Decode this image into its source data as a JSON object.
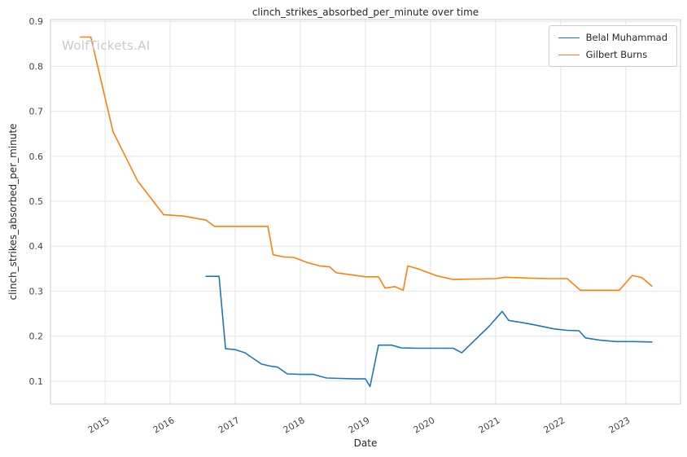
{
  "watermark": "WolfTickets.AI",
  "chart_data": {
    "type": "line",
    "title": "clinch_strikes_absorbed_per_minute over time",
    "xlabel": "Date",
    "ylabel": "clinch_strikes_absorbed_per_minute",
    "xlim": [
      2014.16,
      2023.84
    ],
    "ylim": [
      0.049,
      0.904
    ],
    "x_ticks": [
      2015,
      2016,
      2017,
      2018,
      2019,
      2020,
      2021,
      2022,
      2023
    ],
    "y_ticks": [
      0.1,
      0.2,
      0.3,
      0.4,
      0.5,
      0.6,
      0.7,
      0.8,
      0.9
    ],
    "grid": true,
    "legend_position": "upper right",
    "colors": {
      "grid": "#e3e3e3",
      "spine": "#d4d4d4",
      "belal": "#1f77b4",
      "gilbert": "#ff7f0e"
    },
    "series": [
      {
        "name": "Belal Muhammad",
        "color": "#1f77b4",
        "points": [
          [
            2016.55,
            0.333
          ],
          [
            2016.75,
            0.333
          ],
          [
            2016.85,
            0.172
          ],
          [
            2017.0,
            0.17
          ],
          [
            2017.15,
            0.163
          ],
          [
            2017.4,
            0.138
          ],
          [
            2017.55,
            0.133
          ],
          [
            2017.65,
            0.131
          ],
          [
            2017.8,
            0.116
          ],
          [
            2018.0,
            0.115
          ],
          [
            2018.2,
            0.115
          ],
          [
            2018.4,
            0.107
          ],
          [
            2018.6,
            0.106
          ],
          [
            2018.85,
            0.105
          ],
          [
            2019.0,
            0.105
          ],
          [
            2019.07,
            0.088
          ],
          [
            2019.2,
            0.18
          ],
          [
            2019.4,
            0.18
          ],
          [
            2019.55,
            0.174
          ],
          [
            2019.8,
            0.173
          ],
          [
            2020.1,
            0.173
          ],
          [
            2020.35,
            0.173
          ],
          [
            2020.48,
            0.163
          ],
          [
            2020.9,
            0.222
          ],
          [
            2021.1,
            0.255
          ],
          [
            2021.2,
            0.235
          ],
          [
            2021.45,
            0.229
          ],
          [
            2021.6,
            0.225
          ],
          [
            2021.9,
            0.216
          ],
          [
            2022.1,
            0.213
          ],
          [
            2022.28,
            0.212
          ],
          [
            2022.38,
            0.196
          ],
          [
            2022.6,
            0.191
          ],
          [
            2022.85,
            0.188
          ],
          [
            2023.1,
            0.188
          ],
          [
            2023.4,
            0.187
          ]
        ]
      },
      {
        "name": "Gilbert Burns",
        "color": "#ff7f0e",
        "points": [
          [
            2014.62,
            0.865
          ],
          [
            2014.78,
            0.865
          ],
          [
            2015.12,
            0.655
          ],
          [
            2015.5,
            0.545
          ],
          [
            2015.9,
            0.47
          ],
          [
            2016.2,
            0.467
          ],
          [
            2016.55,
            0.458
          ],
          [
            2016.68,
            0.444
          ],
          [
            2017.0,
            0.444
          ],
          [
            2017.5,
            0.444
          ],
          [
            2017.58,
            0.381
          ],
          [
            2017.75,
            0.376
          ],
          [
            2017.9,
            0.375
          ],
          [
            2018.1,
            0.364
          ],
          [
            2018.3,
            0.356
          ],
          [
            2018.45,
            0.354
          ],
          [
            2018.55,
            0.341
          ],
          [
            2018.8,
            0.336
          ],
          [
            2019.0,
            0.332
          ],
          [
            2019.2,
            0.332
          ],
          [
            2019.3,
            0.307
          ],
          [
            2019.45,
            0.31
          ],
          [
            2019.58,
            0.302
          ],
          [
            2019.65,
            0.356
          ],
          [
            2019.8,
            0.35
          ],
          [
            2020.1,
            0.334
          ],
          [
            2020.35,
            0.326
          ],
          [
            2020.7,
            0.327
          ],
          [
            2021.0,
            0.328
          ],
          [
            2021.15,
            0.331
          ],
          [
            2021.5,
            0.329
          ],
          [
            2021.8,
            0.328
          ],
          [
            2022.1,
            0.328
          ],
          [
            2022.3,
            0.302
          ],
          [
            2022.6,
            0.302
          ],
          [
            2022.9,
            0.302
          ],
          [
            2023.1,
            0.335
          ],
          [
            2023.25,
            0.33
          ],
          [
            2023.4,
            0.311
          ]
        ]
      }
    ]
  }
}
